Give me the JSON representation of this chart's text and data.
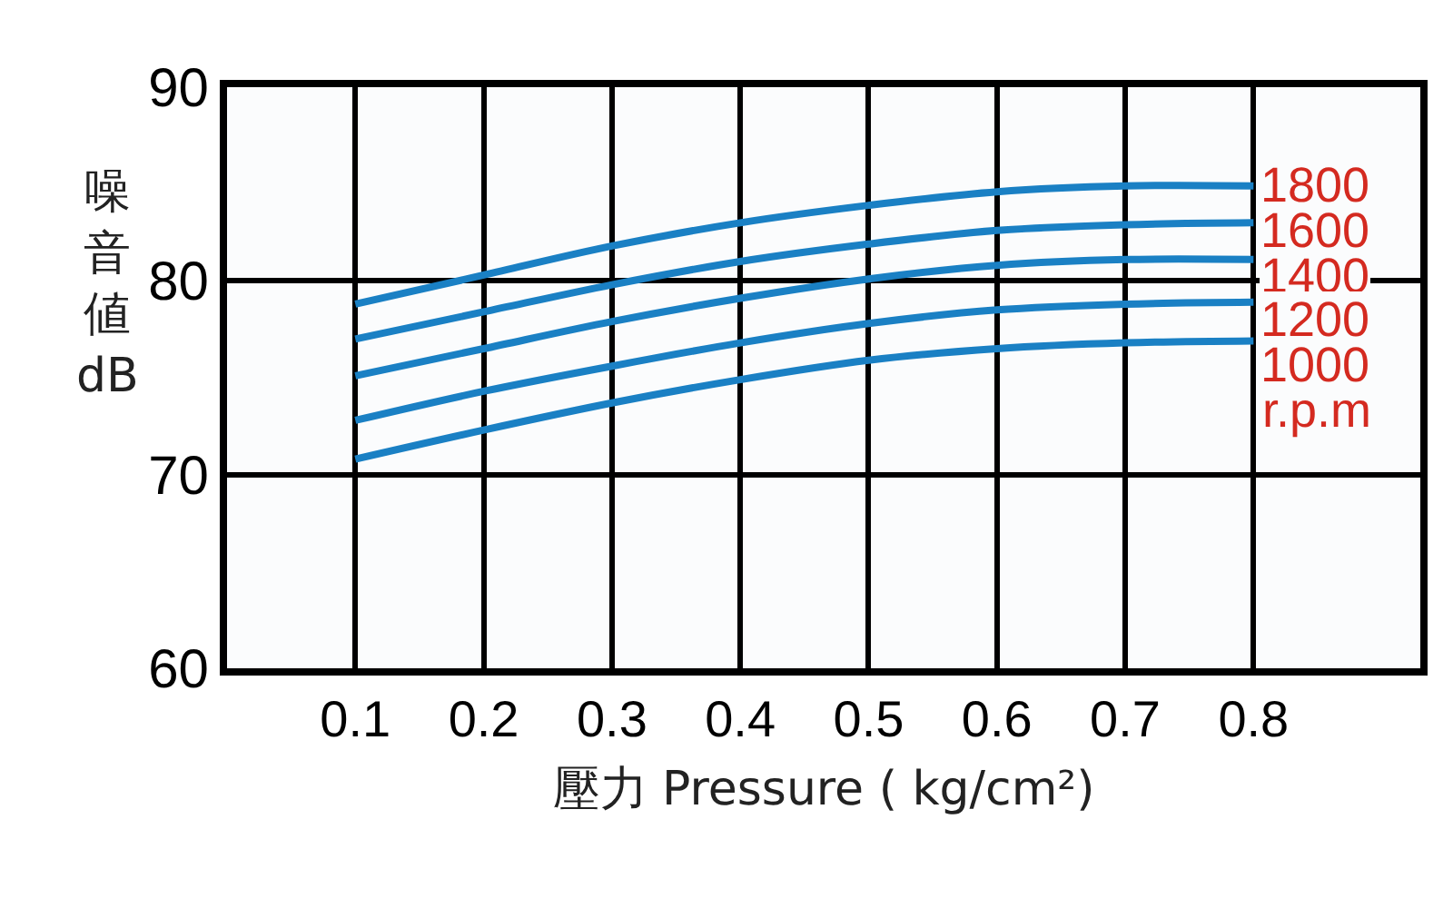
{
  "chart_data": {
    "type": "line",
    "xlabel": "壓力 Pressure ( kg/cm²)",
    "ylabel": "噪音値 dB",
    "x": [
      0.1,
      0.2,
      0.3,
      0.4,
      0.5,
      0.6,
      0.7,
      0.8
    ],
    "series": [
      {
        "name": "1800",
        "color": "#1a80c4",
        "values": [
          78.8,
          80.3,
          81.8,
          83.0,
          83.9,
          84.6,
          84.9,
          84.9
        ]
      },
      {
        "name": "1600",
        "color": "#1a80c4",
        "values": [
          77.0,
          78.4,
          79.8,
          81.0,
          81.9,
          82.6,
          82.9,
          83.0
        ]
      },
      {
        "name": "1400",
        "color": "#1a80c4",
        "values": [
          75.1,
          76.5,
          77.9,
          79.1,
          80.1,
          80.8,
          81.1,
          81.1
        ]
      },
      {
        "name": "1200",
        "color": "#1a80c4",
        "values": [
          72.8,
          74.3,
          75.6,
          76.8,
          77.8,
          78.5,
          78.8,
          78.9
        ]
      },
      {
        "name": "1000",
        "color": "#1a80c4",
        "values": [
          70.8,
          72.3,
          73.7,
          74.9,
          75.9,
          76.5,
          76.8,
          76.9
        ]
      }
    ],
    "annotations": [
      "r.p.m"
    ],
    "xlim": [
      0,
      0.93
    ],
    "xticks": [
      0.1,
      0.2,
      0.3,
      0.4,
      0.5,
      0.6,
      0.7,
      0.8
    ],
    "ylim": [
      60,
      90
    ],
    "yticks": [
      60,
      70,
      80,
      90
    ],
    "grid": true,
    "legend": false,
    "marker": "none",
    "line_style": "solid"
  }
}
